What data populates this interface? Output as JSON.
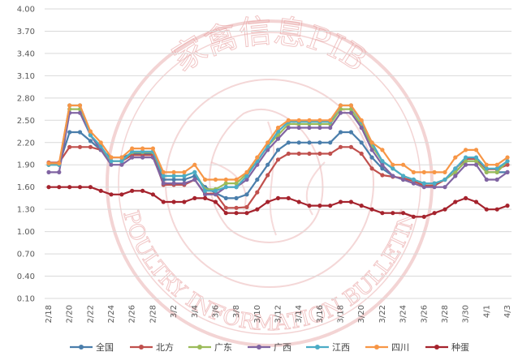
{
  "chart_data": {
    "type": "line",
    "title": "",
    "xlabel": "",
    "ylabel": "",
    "ylim": [
      0.1,
      4.0
    ],
    "yticks": [
      "0.10",
      "0.40",
      "0.70",
      "1.00",
      "1.30",
      "1.60",
      "1.90",
      "2.20",
      "2.50",
      "2.80",
      "3.10",
      "3.40",
      "3.70",
      "4.00"
    ],
    "x_tick_labels": [
      "2/18",
      "2/20",
      "2/22",
      "2/24",
      "2/26",
      "2/28",
      "3/2",
      "3/4",
      "3/6",
      "3/8",
      "3/10",
      "3/12",
      "3/14",
      "3/16",
      "3/18",
      "3/20",
      "3/22",
      "3/24",
      "3/26",
      "3/28",
      "3/30",
      "4/1",
      "4/3"
    ],
    "x": [
      "2/18",
      "2/19",
      "2/20",
      "2/21",
      "2/22",
      "2/23",
      "2/24",
      "2/25",
      "2/26",
      "2/27",
      "2/28",
      "3/1",
      "3/2",
      "3/3",
      "3/4",
      "3/5",
      "3/6",
      "3/7",
      "3/8",
      "3/9",
      "3/10",
      "3/11",
      "3/12",
      "3/13",
      "3/14",
      "3/15",
      "3/16",
      "3/17",
      "3/18",
      "3/19",
      "3/20",
      "3/21",
      "3/22",
      "3/23",
      "3/24",
      "3/25",
      "3/26",
      "3/27",
      "3/28",
      "3/29",
      "3/30",
      "3/31",
      "4/1",
      "4/2",
      "4/3"
    ],
    "grid": true,
    "legend_position": "bottom",
    "series": [
      {
        "name": "全国",
        "color": "#4a7eab",
        "values": [
          1.9,
          1.9,
          2.34,
          2.34,
          2.22,
          2.1,
          2.0,
          2.0,
          2.05,
          2.05,
          2.05,
          1.7,
          1.7,
          1.7,
          1.75,
          1.6,
          1.52,
          1.45,
          1.45,
          1.5,
          1.7,
          1.9,
          2.1,
          2.2,
          2.2,
          2.2,
          2.2,
          2.2,
          2.34,
          2.34,
          2.2,
          2.0,
          1.85,
          1.75,
          1.7,
          1.7,
          1.65,
          1.65,
          1.7,
          1.8,
          1.95,
          1.95,
          1.8,
          1.8,
          1.8
        ]
      },
      {
        "name": "北方",
        "color": "#c0504d",
        "values": [
          1.93,
          1.93,
          2.14,
          2.14,
          2.14,
          2.1,
          1.95,
          1.95,
          2.03,
          2.03,
          2.03,
          1.63,
          1.63,
          1.63,
          1.7,
          1.51,
          1.51,
          1.32,
          1.32,
          1.33,
          1.53,
          1.76,
          1.97,
          2.05,
          2.05,
          2.05,
          2.05,
          2.05,
          2.14,
          2.14,
          2.05,
          1.85,
          1.76,
          1.74,
          1.72,
          1.68,
          1.62,
          1.62,
          1.7,
          1.85,
          1.98,
          1.98,
          1.84,
          1.84,
          1.9
        ]
      },
      {
        "name": "广东",
        "color": "#9bbb59",
        "values": [
          1.9,
          1.9,
          2.65,
          2.65,
          2.3,
          2.1,
          1.95,
          1.95,
          2.07,
          2.07,
          2.07,
          1.75,
          1.75,
          1.75,
          1.8,
          1.57,
          1.57,
          1.65,
          1.65,
          1.78,
          1.95,
          2.15,
          2.3,
          2.45,
          2.45,
          2.45,
          2.45,
          2.45,
          2.65,
          2.65,
          2.43,
          2.15,
          1.95,
          1.85,
          1.75,
          1.7,
          1.65,
          1.65,
          1.7,
          1.8,
          1.95,
          1.95,
          1.8,
          1.8,
          1.95
        ]
      },
      {
        "name": "广西",
        "color": "#8064a2",
        "values": [
          1.8,
          1.8,
          2.6,
          2.6,
          2.3,
          2.1,
          1.9,
          1.9,
          2.0,
          2.0,
          2.0,
          1.65,
          1.65,
          1.65,
          1.7,
          1.5,
          1.5,
          1.6,
          1.6,
          1.7,
          1.9,
          2.1,
          2.25,
          2.4,
          2.4,
          2.4,
          2.4,
          2.4,
          2.6,
          2.6,
          2.4,
          2.1,
          1.9,
          1.75,
          1.7,
          1.65,
          1.6,
          1.6,
          1.6,
          1.75,
          1.9,
          1.9,
          1.7,
          1.7,
          1.8
        ]
      },
      {
        "name": "江西",
        "color": "#4bacc6",
        "values": [
          1.9,
          1.9,
          2.7,
          2.7,
          2.3,
          2.15,
          1.95,
          1.95,
          2.08,
          2.08,
          2.08,
          1.75,
          1.75,
          1.75,
          1.8,
          1.55,
          1.55,
          1.6,
          1.6,
          1.75,
          1.95,
          2.15,
          2.35,
          2.48,
          2.48,
          2.48,
          2.48,
          2.48,
          2.7,
          2.7,
          2.48,
          2.2,
          1.95,
          1.85,
          1.75,
          1.7,
          1.65,
          1.65,
          1.7,
          1.85,
          2.0,
          2.0,
          1.85,
          1.85,
          1.95
        ]
      },
      {
        "name": "四川",
        "color": "#f79646",
        "values": [
          1.92,
          1.92,
          2.7,
          2.7,
          2.35,
          2.2,
          2.0,
          2.0,
          2.12,
          2.12,
          2.12,
          1.8,
          1.8,
          1.8,
          1.9,
          1.7,
          1.7,
          1.7,
          1.7,
          1.8,
          2.0,
          2.2,
          2.4,
          2.5,
          2.5,
          2.5,
          2.5,
          2.5,
          2.7,
          2.7,
          2.5,
          2.2,
          2.1,
          1.9,
          1.9,
          1.8,
          1.8,
          1.8,
          1.8,
          2.0,
          2.1,
          2.1,
          1.9,
          1.9,
          2.0
        ]
      },
      {
        "name": "种蛋",
        "color": "#a5232d",
        "values": [
          1.6,
          1.6,
          1.6,
          1.6,
          1.6,
          1.55,
          1.5,
          1.5,
          1.55,
          1.55,
          1.5,
          1.4,
          1.4,
          1.4,
          1.45,
          1.45,
          1.4,
          1.25,
          1.25,
          1.25,
          1.3,
          1.4,
          1.45,
          1.45,
          1.4,
          1.35,
          1.35,
          1.35,
          1.4,
          1.4,
          1.35,
          1.3,
          1.25,
          1.25,
          1.25,
          1.2,
          1.2,
          1.25,
          1.3,
          1.4,
          1.45,
          1.4,
          1.3,
          1.3,
          1.35
        ]
      }
    ]
  },
  "watermark": {
    "top_text": "家禽信息PIB",
    "bottom_text": "POULTRY INFORMATION BULLETIN",
    "color": "#e8a0a0"
  }
}
